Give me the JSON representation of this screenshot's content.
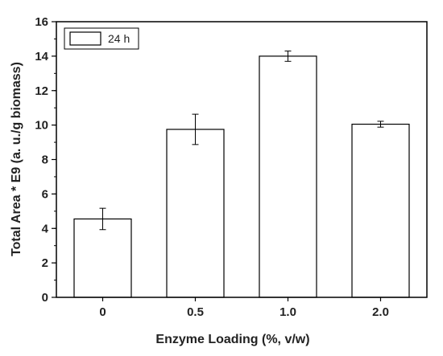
{
  "chart_data": {
    "type": "bar",
    "xlabel": "Enzyme Loading (%, v/w)",
    "ylabel": "Total Area * E9 (a. u./g biomass)",
    "categories": [
      "0",
      "0.5",
      "1.0",
      "2.0"
    ],
    "series": [
      {
        "name": "24 h",
        "values": [
          4.55,
          9.75,
          14.0,
          10.05
        ],
        "errors": [
          0.62,
          0.88,
          0.3,
          0.17
        ]
      }
    ],
    "ylim": [
      0,
      16
    ],
    "yticks": [
      0,
      2,
      4,
      6,
      8,
      10,
      12,
      14,
      16
    ],
    "yticks_minor_step": 1,
    "grid": false,
    "legend_position": "top-left",
    "bar_fill": "#ffffff",
    "bar_stroke": "#000000"
  }
}
